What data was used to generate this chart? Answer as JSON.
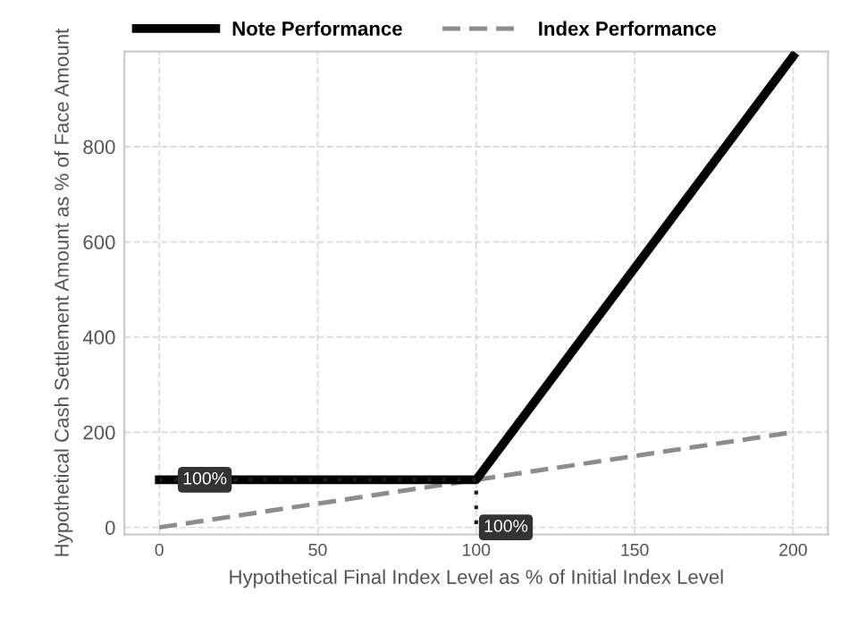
{
  "chart_data": {
    "type": "line",
    "xlabel": "Hypothetical Final Index Level as % of Initial Index Level",
    "ylabel": "Hypothetical Cash Settlement Amount as % of Face Amount",
    "xlim": [
      -11,
      211
    ],
    "xticks": [
      0,
      50,
      100,
      150,
      200
    ],
    "ylim": [
      -15,
      1000
    ],
    "yticks": [
      0,
      200,
      400,
      600,
      800
    ],
    "grid": true,
    "legend": "top",
    "marker": "none",
    "series": [
      {
        "name": "Index Performance",
        "color": "#8c8c8c",
        "line_style": "dashed",
        "x": [
          0,
          200
        ],
        "values": [
          0,
          200
        ]
      },
      {
        "color": "#1a1a2e",
        "line_style": "dotted",
        "x": [
          0,
          100,
          100
        ],
        "values": [
          100,
          100,
          0
        ]
      },
      {
        "name": "Note Performance",
        "color": "#000000",
        "line_style": "solid",
        "x": [
          0,
          100,
          200
        ],
        "values": [
          100,
          100,
          990
        ]
      }
    ],
    "annotations": [
      {
        "text": "100%",
        "x": 5,
        "y": 100
      },
      {
        "text": "100%",
        "x": 100,
        "y": 0
      }
    ]
  }
}
